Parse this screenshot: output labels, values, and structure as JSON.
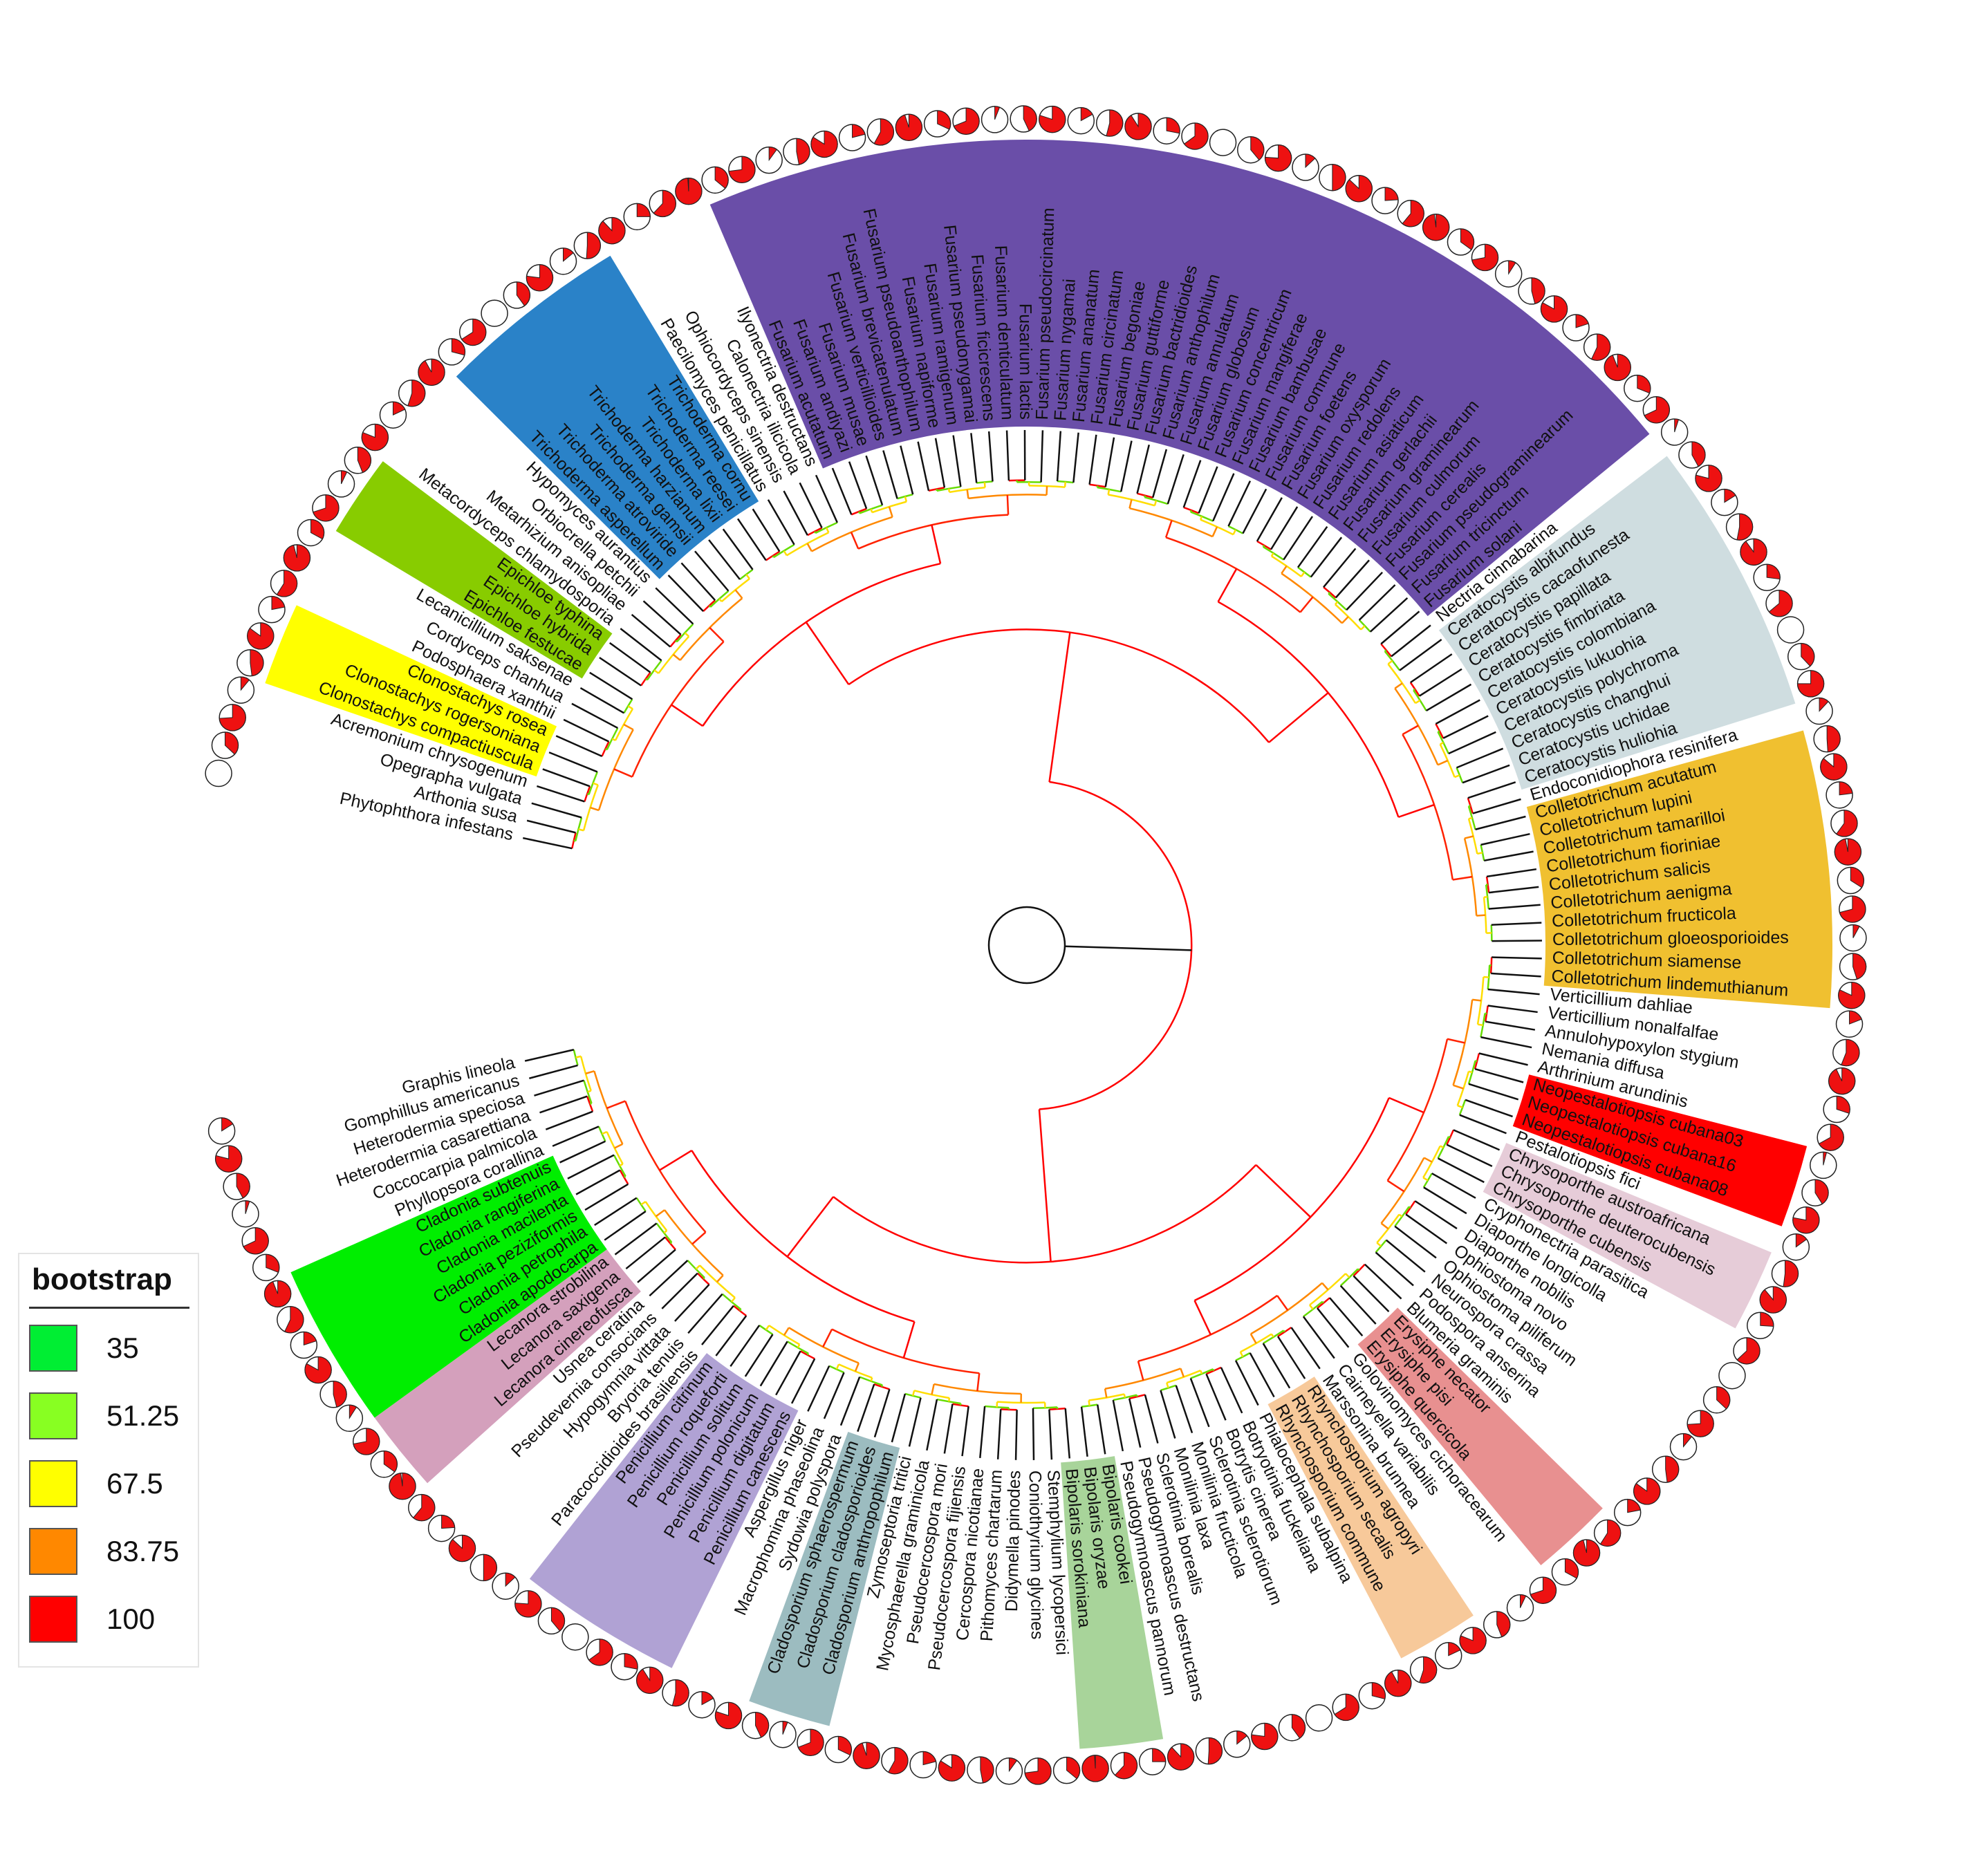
{
  "legend": {
    "title": "bootstrap",
    "items": [
      {
        "label": "35",
        "color": "#00ee33"
      },
      {
        "label": "51.25",
        "color": "#88ff22"
      },
      {
        "label": "67.5",
        "color": "#ffff00"
      },
      {
        "label": "83.75",
        "color": "#ff8800"
      },
      {
        "label": "100",
        "color": "#ff0000"
      }
    ]
  },
  "clades": [
    {
      "name": "Clonostachys",
      "color": "#ffff00"
    },
    {
      "name": "Epichloe",
      "color": "#88cc00"
    },
    {
      "name": "Trichoderma",
      "color": "#2a82c8"
    },
    {
      "name": "Fusarium",
      "color": "#6a4ea8"
    },
    {
      "name": "Ceratocystis",
      "color": "#cfdde0"
    },
    {
      "name": "Colletotrichum",
      "color": "#f0c030"
    },
    {
      "name": "Neopestalotiopsis",
      "color": "#ff0000"
    },
    {
      "name": "Chrysoporthe",
      "color": "#e6ccd8"
    },
    {
      "name": "Erysiphe",
      "color": "#e89090"
    },
    {
      "name": "Rhynchosporium",
      "color": "#f7c99a"
    },
    {
      "name": "Bipolaris",
      "color": "#a8d49a"
    },
    {
      "name": "Cladosporium",
      "color": "#9cbcc0"
    },
    {
      "name": "Penicillium",
      "color": "#b0a2d4"
    },
    {
      "name": "Lecanora",
      "color": "#d4a0bc"
    },
    {
      "name": "Cladonia",
      "color": "#00ee00"
    }
  ],
  "tips": [
    "Phytophthora infestans",
    "Arthonia susa",
    "Opegrapha vulgata",
    "Acremonium chrysogenum",
    "Clonostachys compactiuscula",
    "Clonostachys rogersoniana",
    "Clonostachys rosea",
    "Podosphaera xanthii",
    "Cordyceps chanhua",
    "Lecanicillium saksenae",
    "Epichloe festucae",
    "Epichloe hybrida",
    "Epichloe typhina",
    "Metacordyceps chlamydosporia",
    "Metarhizium anisopliae",
    "Orbiocrella petchii",
    "Hypomyces aurantius",
    "Trichoderma asperellum",
    "Trichoderma atroviride",
    "Trichoderma gamsii",
    "Trichoderma harzianum",
    "Trichoderma lixii",
    "Trichoderma reesei",
    "Trichoderma cornu",
    "Paecilomyces penicillatus",
    "Ophiocordyceps sinensis",
    "Calonectria ilicicola",
    "Ilyonectria destructans",
    "Fusarium acutatum",
    "Fusarium andiyazi",
    "Fusarium musae",
    "Fusarium verticillioides",
    "Fusarium brevicatenulatum",
    "Fusarium pseudoanthophilum",
    "Fusarium napiforme",
    "Fusarium ramigenum",
    "Fusarium pseudonygamai",
    "Fusarium ficicrescens",
    "Fusarium denticulatum",
    "Fusarium lactis",
    "Fusarium pseudocircinatum",
    "Fusarium nygamai",
    "Fusarium ananatum",
    "Fusarium circinatum",
    "Fusarium begoniae",
    "Fusarium guttiforme",
    "Fusarium bactridioides",
    "Fusarium anthophilum",
    "Fusarium annulatum",
    "Fusarium globosum",
    "Fusarium concentricum",
    "Fusarium mangiferae",
    "Fusarium bambusae",
    "Fusarium commune",
    "Fusarium foetens",
    "Fusarium oxysporum",
    "Fusarium redolens",
    "Fusarium asiaticum",
    "Fusarium gerlachii",
    "Fusarium graminearum",
    "Fusarium culmorum",
    "Fusarium cerealis",
    "Fusarium pseudograminearum",
    "Fusarium tricinctum",
    "Fusarium solani",
    "Nectria cinnabarina",
    "Ceratocystis albifundus",
    "Ceratocystis cacaofunesta",
    "Ceratocystis papillata",
    "Ceratocystis fimbriata",
    "Ceratocystis colombiana",
    "Ceratocystis lukuohia",
    "Ceratocystis polychroma",
    "Ceratocystis changhui",
    "Ceratocystis uchidae",
    "Ceratocystis huliohia",
    "Endoconidiophora resinifera",
    "Colletotrichum acutatum",
    "Colletotrichum lupini",
    "Colletotrichum tamarilloi",
    "Colletotrichum fioriniae",
    "Colletotrichum salicis",
    "Colletotrichum aenigma",
    "Colletotrichum fructicola",
    "Colletotrichum gloeosporioides",
    "Colletotrichum siamense",
    "Colletotrichum lindemuthianum",
    "Verticillium dahliae",
    "Verticillium nonalfalfae",
    "Annulohypoxylon stygium",
    "Nemania diffusa",
    "Arthrinium arundinis",
    "Neopestalotiopsis cubana03",
    "Neopestalotiopsis cubana16",
    "Neopestalotiopsis cubana08",
    "Pestalotiopsis fici",
    "Chrysoporthe austroafricana",
    "Chrysoporthe deuterocubensis",
    "Chrysoporthe cubensis",
    "Cryphonectria parasitica",
    "Diaporthe longicolla",
    "Diaporthe nobilis",
    "Ophiostoma novo",
    "Ophiostoma piliferum",
    "Neurospora crassa",
    "Podospora anserina",
    "Blumeria graminis",
    "Erysiphe necator",
    "Erysiphe pisi",
    "Erysiphe quercicola",
    "Golovinomyces cichoracearum",
    "Cairneyella variabilis",
    "Marssonina brunnea",
    "Rhynchosporium agropyri",
    "Rhynchosporium secalis",
    "Rhynchosporium commune",
    "Phialocephala subalpina",
    "Botryotinia fuckeliana",
    "Botrytis cinerea",
    "Sclerotinia sclerotiorum",
    "Monilinia fructicola",
    "Monilinia laxa",
    "Sclerotinia borealis",
    "Pseudogymnoascus destructans",
    "Pseudogymnoascus pannorum",
    "Bipolaris cookei",
    "Bipolaris oryzae",
    "Bipolaris sorokiniana",
    "Stemphylium lycopersici",
    "Coniothyrium glycines",
    "Didymella pinodes",
    "Pithomyces chartarum",
    "Cercospora nicotianae",
    "Pseudocercospora fijiensis",
    "Pseudocercospora mori",
    "Mycosphaerella graminicola",
    "Zymoseptoria tritici",
    "Cladosporium anthropophilum",
    "Cladosporium cladosporioides",
    "Cladosporium sphaerospermum",
    "Sydowia polyspora",
    "Macrophomina phaseolina",
    "Aspergillus niger",
    "Penicillium canescens",
    "Penicillium digitatum",
    "Penicillium polonicum",
    "Penicillium solitum",
    "Penicillium roqueforti",
    "Penicillium citrinum",
    "Paracoccidioides brasiliensis",
    "Bryoria tenuis",
    "Hypogymnia vittata",
    "Pseudevernia consocians",
    "Usnea ceratina",
    "Lecanora cinereofusca",
    "Lecanora saxigena",
    "Lecanora strobilina",
    "Cladonia apodocarpa",
    "Cladonia petrophila",
    "Cladonia peziziformis",
    "Cladonia macilenta",
    "Cladonia rangiferina",
    "Cladonia subtenuis",
    "Phyllopsora corallina",
    "Coccocarpia palmicola",
    "Heterodermia casarettiana",
    "Heterodermia speciosa",
    "Gomphillus americanus",
    "Graphis lineola"
  ]
}
